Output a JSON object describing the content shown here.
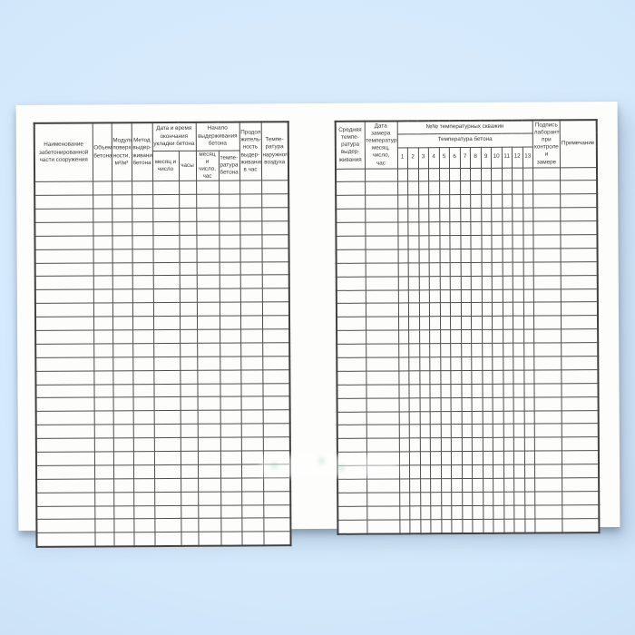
{
  "left_page": {
    "columns": {
      "name": "Наименование\nзабетонированной\nчасти сооружения",
      "volume": "Объем\nбетона",
      "surface_modulus": "Модуль\nповерх-\nности,\nм²/м³",
      "curing_method": "Метод\nвыдер-\nживания\nбетона",
      "placement_end_group": "Дата и время\nокончания\nукладки бетона",
      "placement_end_date": "месяц и\nчисло",
      "placement_end_hours": "часы",
      "curing_start_group": "Начало\nвыдерживания\nбетона",
      "curing_start_datetime": "месяц и\nчисло,\nчас",
      "curing_start_temp": "темпе-\nратура\nбетона",
      "curing_duration": "Продол-\nжитель-\nность\nвыдер-\nживания\nв час",
      "outdoor_temp": "Темпе-\nратура\nнаружного\nвоздуха"
    },
    "empty_row_count": 27
  },
  "right_page": {
    "columns": {
      "avg_curing_temp": "Средняя\nтемпе-\nратура\nвыдер-\nживания",
      "measure_datetime": "Дата замера\nтемпературы:\nмесяц, число,\nчас",
      "wells_group": "№№ температурных скважин",
      "wells_subgroup": "Температура бетона",
      "well_numbers": [
        "1",
        "2",
        "3",
        "4",
        "5",
        "6",
        "7",
        "8",
        "9",
        "10",
        "11",
        "12",
        "13"
      ],
      "signature": "Подпись\nлаборанта\nпри\nконтроле и\nзамере",
      "notes": "Примечание"
    },
    "empty_row_count": 27
  },
  "colors": {
    "background_top": "#ddeffe",
    "background_bottom": "#c4daf2",
    "paper": "#fdfdfc",
    "table_border": "#4e4e4e",
    "text": "#333333"
  }
}
